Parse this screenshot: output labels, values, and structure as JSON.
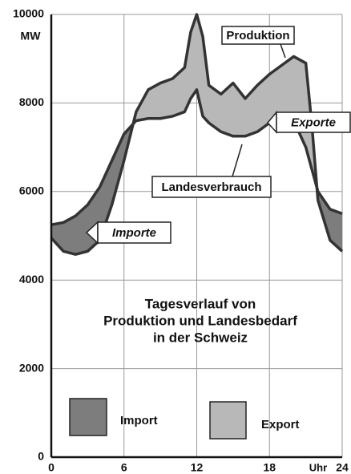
{
  "chart_data": {
    "type": "line",
    "title": [
      "Tagesverlauf von",
      "Produktion und Landesbedarf",
      "in der Schweiz"
    ],
    "y_label": "MW",
    "x_label": "Uhr",
    "x": [
      0,
      1,
      2,
      3,
      4,
      5,
      6,
      7,
      8,
      9,
      10,
      11,
      11.5,
      12,
      12.5,
      13,
      14,
      15,
      16,
      17,
      18,
      19,
      20,
      21,
      21.5,
      22,
      23,
      24
    ],
    "series": [
      {
        "name": "Produktion",
        "color": "#333333",
        "values": [
          4950,
          4650,
          4580,
          4650,
          4900,
          5700,
          6700,
          7800,
          8300,
          8450,
          8550,
          8800,
          9600,
          10000,
          9500,
          8400,
          8200,
          8450,
          8100,
          8400,
          8650,
          8850,
          9050,
          8900,
          7500,
          5800,
          4900,
          4650
        ]
      },
      {
        "name": "Landesverbrauch",
        "color": "#333333",
        "values": [
          5250,
          5300,
          5450,
          5700,
          6100,
          6700,
          7300,
          7600,
          7650,
          7650,
          7700,
          7800,
          8100,
          8300,
          7700,
          7550,
          7350,
          7250,
          7250,
          7350,
          7550,
          7650,
          7600,
          7000,
          6500,
          6000,
          5600,
          5500
        ]
      }
    ],
    "areas": [
      {
        "name": "Import",
        "color": "#7d7d7d"
      },
      {
        "name": "Export",
        "color": "#b8b8b8"
      }
    ],
    "annotations": [
      "Exporte",
      "Importe"
    ],
    "xlim": [
      0,
      24
    ],
    "xticks": [
      0,
      6,
      12,
      18,
      24
    ],
    "ylim": [
      0,
      10000
    ],
    "yticks": [
      0,
      2000,
      4000,
      6000,
      8000,
      10000
    ],
    "grid": true
  }
}
